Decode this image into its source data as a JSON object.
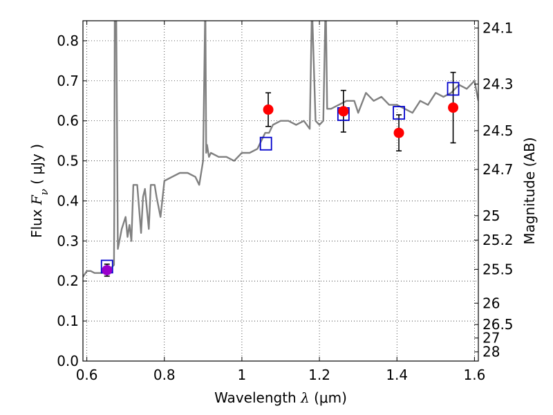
{
  "chart_data": {
    "type": "scatter",
    "title": "",
    "xlabel": {
      "prefix": "Wavelength  ",
      "symbol": "λ",
      "unit": " (μm)"
    },
    "ylabel": {
      "prefix": "Flux  ",
      "symbol": "F",
      "sub": "ν",
      "unit": "  ( μJy )"
    },
    "y2label": "Magnitude (AB)",
    "xlim": [
      0.59,
      1.61
    ],
    "ylim": [
      0.0,
      0.85
    ],
    "grid": true,
    "x_ticks": [
      "0.6",
      "0.8",
      "1",
      "1.2",
      "1.4",
      "1.6"
    ],
    "x_tick_values": [
      0.6,
      0.8,
      1.0,
      1.2,
      1.4,
      1.6
    ],
    "y_ticks": [
      "0.0",
      "0.1",
      "0.2",
      "0.3",
      "0.4",
      "0.5",
      "0.6",
      "0.7",
      "0.8"
    ],
    "y_tick_values": [
      0.0,
      0.1,
      0.2,
      0.3,
      0.4,
      0.5,
      0.6,
      0.7,
      0.8
    ],
    "y2_ticks": [
      "24.1",
      "24.3",
      "24.5",
      "24.7",
      "25",
      "25.2",
      "25.5",
      "26",
      "26.5",
      "27",
      "28"
    ],
    "y2_tick_values": [
      24.1,
      24.3,
      24.5,
      24.7,
      25.0,
      25.2,
      25.5,
      26.0,
      26.5,
      27.0,
      28.0
    ],
    "model_spectrum": {
      "color": "#808080",
      "x": [
        0.59,
        0.6,
        0.61,
        0.62,
        0.63,
        0.64,
        0.65,
        0.66,
        0.67,
        0.671,
        0.672,
        0.676,
        0.68,
        0.69,
        0.7,
        0.705,
        0.71,
        0.715,
        0.72,
        0.73,
        0.74,
        0.745,
        0.75,
        0.755,
        0.76,
        0.765,
        0.77,
        0.775,
        0.78,
        0.79,
        0.8,
        0.82,
        0.84,
        0.86,
        0.88,
        0.89,
        0.9,
        0.905,
        0.906,
        0.908,
        0.91,
        0.915,
        0.92,
        0.94,
        0.96,
        0.98,
        1.0,
        1.02,
        1.04,
        1.06,
        1.07,
        1.08,
        1.1,
        1.12,
        1.14,
        1.16,
        1.175,
        1.18,
        1.182,
        1.19,
        1.2,
        1.21,
        1.215,
        1.217,
        1.22,
        1.23,
        1.25,
        1.27,
        1.29,
        1.3,
        1.32,
        1.34,
        1.36,
        1.38,
        1.4,
        1.42,
        1.44,
        1.46,
        1.48,
        1.5,
        1.52,
        1.54,
        1.56,
        1.58,
        1.6,
        1.61
      ],
      "y": [
        0.21,
        0.225,
        0.225,
        0.22,
        0.22,
        0.22,
        0.23,
        0.23,
        0.24,
        0.4,
        0.85,
        0.85,
        0.28,
        0.33,
        0.36,
        0.31,
        0.34,
        0.3,
        0.44,
        0.44,
        0.32,
        0.41,
        0.43,
        0.38,
        0.33,
        0.44,
        0.44,
        0.44,
        0.41,
        0.36,
        0.45,
        0.46,
        0.47,
        0.47,
        0.46,
        0.44,
        0.5,
        0.85,
        0.85,
        0.52,
        0.54,
        0.51,
        0.52,
        0.51,
        0.51,
        0.5,
        0.52,
        0.52,
        0.53,
        0.57,
        0.57,
        0.59,
        0.6,
        0.6,
        0.59,
        0.6,
        0.58,
        0.85,
        0.85,
        0.6,
        0.59,
        0.6,
        0.85,
        0.85,
        0.63,
        0.63,
        0.64,
        0.65,
        0.65,
        0.62,
        0.67,
        0.65,
        0.66,
        0.64,
        0.64,
        0.63,
        0.62,
        0.65,
        0.64,
        0.67,
        0.66,
        0.67,
        0.69,
        0.68,
        0.7,
        0.65
      ]
    },
    "model_photometry": {
      "marker": "open-square",
      "color": "#0000cc",
      "x": [
        0.652,
        1.062,
        1.262,
        1.405,
        1.545
      ],
      "y": [
        0.236,
        0.543,
        0.617,
        0.62,
        0.68
      ]
    },
    "observed_photometry": {
      "marker": "filled-circle",
      "colors": [
        "#9900cc",
        "#ff0000",
        "#ff0000",
        "#ff0000",
        "#ff0000"
      ],
      "x": [
        0.652,
        1.068,
        1.262,
        1.405,
        1.545
      ],
      "y": [
        0.227,
        0.628,
        0.624,
        0.57,
        0.633
      ],
      "yerr": [
        0.015,
        0.042,
        0.052,
        0.045,
        0.088
      ]
    }
  }
}
